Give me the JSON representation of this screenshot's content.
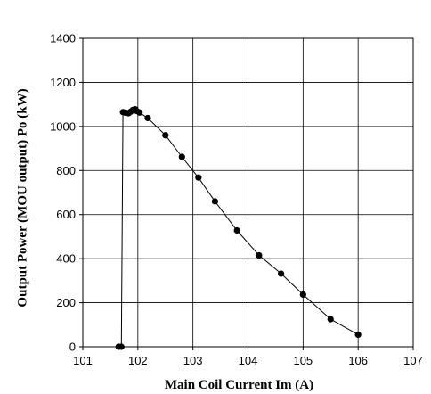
{
  "chart_data": {
    "type": "line",
    "xlabel": "Main Coil Current  Im (A)",
    "ylabel": "Output Power (MOU output)  Po (kW)",
    "xlim": [
      101,
      107
    ],
    "ylim": [
      0,
      1400
    ],
    "x_ticks": [
      "101",
      "102",
      "103",
      "104",
      "105",
      "106",
      "107"
    ],
    "y_ticks": [
      "0",
      "200",
      "400",
      "600",
      "800",
      "1000",
      "1200",
      "1400"
    ],
    "grid": true,
    "series": [
      {
        "points": [
          [
            101.65,
            0
          ],
          [
            101.7,
            0
          ],
          [
            101.73,
            1065
          ],
          [
            101.78,
            1062
          ],
          [
            101.83,
            1060
          ],
          [
            101.87,
            1067
          ],
          [
            101.91,
            1075
          ],
          [
            101.95,
            1078
          ],
          [
            101.98,
            1070
          ],
          [
            102.03,
            1063
          ],
          [
            102.18,
            1038
          ],
          [
            102.5,
            960
          ],
          [
            102.8,
            862
          ],
          [
            103.1,
            768
          ],
          [
            103.4,
            660
          ],
          [
            103.8,
            528
          ],
          [
            104.2,
            415
          ],
          [
            104.6,
            332
          ],
          [
            105.0,
            237
          ],
          [
            105.5,
            125
          ],
          [
            106.0,
            55
          ]
        ]
      }
    ]
  }
}
